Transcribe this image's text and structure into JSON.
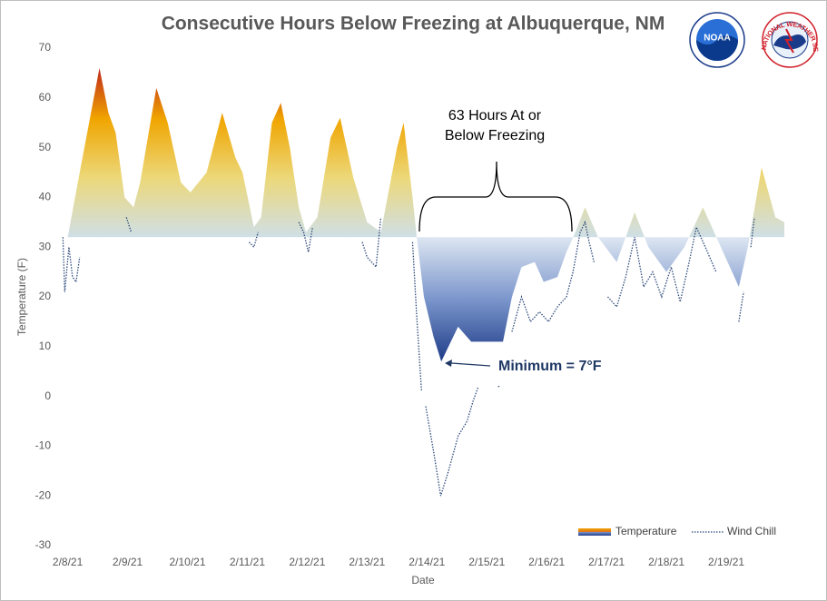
{
  "chart_data": {
    "type": "area",
    "title": "Consecutive Hours Below Freezing at Albuquerque, NM",
    "xlabel": "Date",
    "ylabel": "Temperature (F)",
    "xlim": [
      -0.1,
      12
    ],
    "xticks": [
      {
        "value": 0,
        "label": "2/8/21"
      },
      {
        "value": 1,
        "label": "2/9/21"
      },
      {
        "value": 2,
        "label": "2/10/21"
      },
      {
        "value": 3,
        "label": "2/11/21"
      },
      {
        "value": 4,
        "label": "2/12/21"
      },
      {
        "value": 5,
        "label": "2/13/21"
      },
      {
        "value": 6,
        "label": "2/14/21"
      },
      {
        "value": 7,
        "label": "2/15/21"
      },
      {
        "value": 8,
        "label": "2/16/21"
      },
      {
        "value": 9,
        "label": "2/17/21"
      },
      {
        "value": 10,
        "label": "2/18/21"
      },
      {
        "value": 11,
        "label": "2/19/21"
      }
    ],
    "ylim": [
      -30,
      70
    ],
    "yticks": [
      -30,
      -20,
      -10,
      0,
      10,
      20,
      30,
      40,
      50,
      60,
      70
    ],
    "grid": false,
    "fill_baseline": 32,
    "legend": "lower right",
    "series": [
      {
        "name": "Temperature",
        "color": "#f0a500",
        "color_below": "#1f3c88",
        "x": [
          -0.1,
          0,
          0.2,
          0.53,
          0.68,
          0.8,
          0.95,
          1.1,
          1.21,
          1.48,
          1.67,
          1.89,
          2.05,
          2.32,
          2.58,
          2.8,
          2.92,
          3.11,
          3.23,
          3.41,
          3.56,
          3.71,
          3.86,
          3.98,
          4.17,
          4.39,
          4.55,
          4.77,
          5.0,
          5.23,
          5.5,
          5.61,
          5.76,
          5.83,
          5.95,
          6.11,
          6.24,
          6.36,
          6.52,
          6.74,
          7.27,
          7.42,
          7.58,
          7.8,
          7.95,
          8.18,
          8.33,
          8.48,
          8.64,
          8.86,
          9.17,
          9.47,
          9.7,
          10.0,
          10.3,
          10.61,
          10.91,
          11.21,
          11.36,
          11.59,
          11.82,
          11.97
        ],
        "values": [
          32,
          32,
          45,
          66,
          57,
          53,
          40,
          38,
          43,
          62,
          55,
          43,
          41,
          45,
          57,
          48,
          45,
          34,
          36,
          55,
          59,
          50,
          38,
          33,
          36,
          52,
          56,
          44,
          35,
          33,
          50,
          55,
          40,
          32,
          20,
          12,
          7,
          10,
          14,
          11,
          11,
          20,
          26,
          27,
          23,
          24,
          29,
          33,
          38,
          32,
          27,
          37,
          30,
          25,
          30,
          38,
          30,
          22,
          30,
          46,
          36,
          35
        ]
      },
      {
        "name": "Wind Chill",
        "color": "#2f4a7a",
        "x": [
          -0.08,
          -0.05,
          0.02,
          0.08,
          0.14,
          0.2,
          null,
          0.98,
          1.06,
          null,
          3.03,
          3.11,
          3.18,
          null,
          3.86,
          3.94,
          4.02,
          4.09,
          null,
          4.92,
          5.0,
          5.15,
          5.23,
          null,
          5.76,
          5.83,
          5.91,
          null,
          5.98,
          6.11,
          6.23,
          6.36,
          6.52,
          6.67,
          6.77,
          6.86,
          null,
          7.2,
          null,
          7.42,
          7.58,
          7.73,
          7.88,
          8.03,
          8.18,
          8.33,
          8.44,
          8.56,
          8.64,
          8.71,
          8.79,
          null,
          9.02,
          9.17,
          9.32,
          9.47,
          9.62,
          9.77,
          9.92,
          10.08,
          10.23,
          10.38,
          10.5,
          10.65,
          10.83,
          null,
          11.21,
          11.29,
          null,
          11.41,
          11.47
        ],
        "values": [
          32,
          21,
          30,
          24,
          23,
          28,
          null,
          36,
          33,
          null,
          31,
          30,
          33,
          null,
          35,
          33,
          29,
          34,
          null,
          31,
          28,
          26,
          36,
          null,
          31,
          16,
          1,
          null,
          -2,
          -11,
          -20,
          -15,
          -8,
          -5,
          -1,
          2,
          null,
          2,
          null,
          13,
          20,
          15,
          17,
          15,
          18,
          20,
          25,
          33,
          35,
          31,
          27,
          null,
          20,
          18,
          24,
          32,
          22,
          25,
          20,
          26,
          19,
          27,
          34,
          30,
          25,
          null,
          15,
          21,
          null,
          30,
          36
        ]
      }
    ],
    "annotations": [
      "63 Hours At or",
      "Below Freezing",
      "Minimum = 7°F"
    ],
    "logos": [
      "NOAA",
      "NATIONAL WEATHER SERVICE"
    ]
  }
}
